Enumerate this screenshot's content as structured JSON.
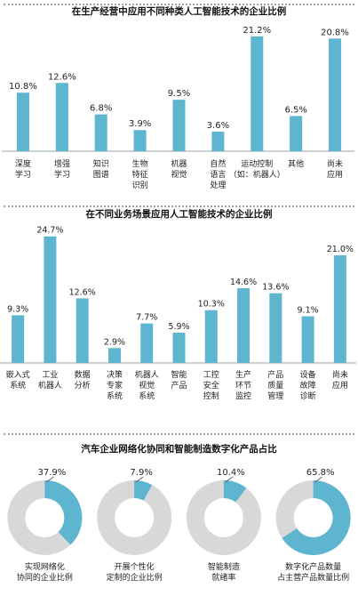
{
  "colors": {
    "bar": "#5db5cf",
    "ring_track": "#d8d8d8",
    "ring_fill": "#5db5cf",
    "text": "#222222"
  },
  "chart_data": [
    {
      "type": "bar",
      "title": "在生产经营中应用不同种类人工智能技术的企业比例",
      "categories": [
        "深度\n学习",
        "增强\n学习",
        "知识\n图谱",
        "生物\n特征\n识别",
        "机器\n视觉",
        "自然\n语言\n处理",
        "运动控制\n（如：机器人）",
        "其他",
        "尚未\n应用"
      ],
      "values": [
        10.8,
        12.6,
        6.8,
        3.9,
        9.5,
        3.6,
        21.2,
        6.5,
        20.8
      ],
      "value_labels": [
        "10.8%",
        "12.6%",
        "6.8%",
        "3.9%",
        "9.5%",
        "3.6%",
        "21.2%",
        "6.5%",
        "20.8%"
      ],
      "unit": "%",
      "ylim": [
        0,
        22
      ],
      "grid": false,
      "legend": "none"
    },
    {
      "type": "bar",
      "title": "在不同业务场景应用人工智能技术的企业比例",
      "categories": [
        "嵌入式\n系统",
        "工业\n机器人",
        "数据\n分析",
        "决策\n专家\n系统",
        "机器人\n视觉\n系统",
        "智能\n产品",
        "工控\n安全\n控制",
        "生产\n环节\n监控",
        "产品\n质量\n管理",
        "设备\n故障\n诊断",
        "尚未\n应用"
      ],
      "values": [
        9.3,
        24.7,
        12.6,
        2.9,
        7.7,
        5.9,
        10.3,
        14.6,
        13.6,
        9.1,
        21.0
      ],
      "value_labels": [
        "9.3%",
        "24.7%",
        "12.6%",
        "2.9%",
        "7.7%",
        "5.9%",
        "10.3%",
        "14.6%",
        "13.6%",
        "9.1%",
        "21.0%"
      ],
      "unit": "%",
      "ylim": [
        0,
        25
      ],
      "grid": false,
      "legend": "none"
    },
    {
      "type": "pie",
      "title": "汽车企业网络化协同和智能制造数字化产品占比",
      "categories": [
        "实现网络化\n协同的企业比例",
        "开展个性化\n定制的企业比例",
        "智能制造\n就绪率",
        "数字化产品数量\n占主营产品数量比例"
      ],
      "values": [
        37.9,
        7.9,
        10.4,
        65.8
      ],
      "value_labels": [
        "37.9%",
        "7.9%",
        "10.4%",
        "65.8%"
      ],
      "unit": "%",
      "legend": "none"
    }
  ]
}
